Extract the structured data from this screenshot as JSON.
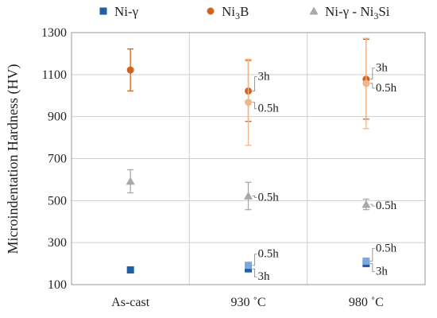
{
  "chart_data": {
    "type": "scatter",
    "categories": [
      "As-cast",
      "930 ˚C",
      "980 ˚C"
    ],
    "ylabel": "Microindentation Hardness (HV)",
    "ylim": [
      100,
      1300
    ],
    "yticks": [
      100,
      300,
      500,
      700,
      900,
      1100,
      1300
    ],
    "grid": true,
    "legend_position": "top",
    "series": [
      {
        "name": "Ni-γ",
        "marker": "square",
        "color": "#1f5fa8",
        "points": [
          {
            "category": "As-cast",
            "y": 170,
            "err": 0
          },
          {
            "category": "930 ˚C",
            "y": 175,
            "err": 12,
            "label": "3h"
          },
          {
            "category": "980 ˚C",
            "y": 200,
            "err": 10,
            "label": "3h"
          }
        ]
      },
      {
        "name": "Ni-γ (0.5h)",
        "marker": "square",
        "color": "#7fa7d9",
        "points": [
          {
            "category": "930 ˚C",
            "y": 192,
            "err": 12,
            "label": "0.5h"
          },
          {
            "category": "980 ˚C",
            "y": 212,
            "err": 12,
            "label": "0.5h"
          }
        ]
      },
      {
        "name": "Ni3B",
        "marker": "circle",
        "color": "#d4621e",
        "points": [
          {
            "category": "As-cast",
            "y": 1122,
            "err": 100
          },
          {
            "category": "930 ˚C",
            "y": 1022,
            "err": 145,
            "label": "3h"
          },
          {
            "category": "980 ˚C",
            "y": 1078,
            "err": 190,
            "label": "3h"
          }
        ]
      },
      {
        "name": "Ni3B (0.5h)",
        "marker": "circle",
        "color": "#f2b48c",
        "points": [
          {
            "category": "930 ˚C",
            "y": 968,
            "err": 205,
            "label": "0.5h"
          },
          {
            "category": "980 ˚C",
            "y": 1058,
            "err": 215,
            "label": "0.5h"
          }
        ]
      },
      {
        "name": "Ni-γ - Ni3Si",
        "marker": "triangle",
        "color": "#a8a8a8",
        "points": [
          {
            "category": "As-cast",
            "y": 592,
            "err": 55
          },
          {
            "category": "930 ˚C",
            "y": 522,
            "err": 65,
            "label": "0.5h"
          },
          {
            "category": "980 ˚C",
            "y": 482,
            "err": 25,
            "label": "0.5h"
          }
        ]
      }
    ],
    "legend": [
      {
        "label_main": "Ni-γ",
        "label_sub": "",
        "label_tail": "",
        "marker": "square",
        "color": "#1f5fa8"
      },
      {
        "label_main": "Ni",
        "label_sub": "3",
        "label_tail": "B",
        "marker": "circle",
        "color": "#d4621e"
      },
      {
        "label_main": "Ni-γ - Ni",
        "label_sub": "3",
        "label_tail": "Si",
        "marker": "triangle",
        "color": "#a8a8a8"
      }
    ]
  }
}
